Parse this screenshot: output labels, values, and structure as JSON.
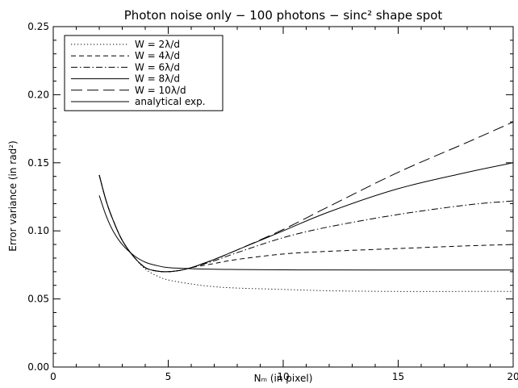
{
  "chart_data": {
    "type": "line",
    "title": "Photon noise only − 100 photons − sinc² shape spot",
    "xlabel": "Nₘ (in pixel)",
    "ylabel": "Error variance (in rad²)",
    "xlim": [
      0,
      20
    ],
    "ylim": [
      0,
      0.25
    ],
    "xticks": [
      0,
      5,
      10,
      15,
      20
    ],
    "xtick_labels": [
      "0",
      "5",
      "10",
      "15",
      "20"
    ],
    "yticks": [
      0,
      0.05,
      0.1,
      0.15,
      0.2,
      0.25
    ],
    "ytick_labels": [
      "0.00",
      "0.05",
      "0.10",
      "0.15",
      "0.20",
      "0.25"
    ],
    "grid": false,
    "legend_position": "top-left",
    "series": [
      {
        "name": "W =  2λ/d",
        "dash": "dotted",
        "x": [
          2,
          2.3,
          2.6,
          3,
          3.5,
          4,
          4.5,
          5,
          6,
          7,
          8,
          10,
          12,
          15,
          18,
          20
        ],
        "y": [
          0.141,
          0.122,
          0.108,
          0.093,
          0.081,
          0.072,
          0.067,
          0.064,
          0.061,
          0.059,
          0.058,
          0.057,
          0.056,
          0.0555,
          0.0555,
          0.0555
        ]
      },
      {
        "name": "W =  4λ/d",
        "dash": "dashed",
        "x": [
          2,
          2.3,
          2.6,
          3,
          3.5,
          4,
          4.5,
          5,
          5.5,
          6,
          7,
          8,
          10,
          12,
          15,
          18,
          20
        ],
        "y": [
          0.141,
          0.122,
          0.108,
          0.093,
          0.081,
          0.073,
          0.0705,
          0.07,
          0.071,
          0.073,
          0.076,
          0.079,
          0.083,
          0.085,
          0.087,
          0.089,
          0.09
        ]
      },
      {
        "name": "W =  6λ/d",
        "dash": "dashdot",
        "x": [
          2,
          2.3,
          2.6,
          3,
          3.5,
          4,
          4.5,
          5,
          5.5,
          6,
          7,
          8,
          10,
          12,
          15,
          18,
          20
        ],
        "y": [
          0.141,
          0.122,
          0.108,
          0.093,
          0.081,
          0.073,
          0.0705,
          0.07,
          0.071,
          0.073,
          0.078,
          0.084,
          0.095,
          0.103,
          0.112,
          0.119,
          0.122
        ]
      },
      {
        "name": "W =  8λ/d",
        "dash": "solid",
        "x": [
          2,
          2.3,
          2.6,
          3,
          3.5,
          4,
          4.5,
          5,
          5.5,
          6,
          7,
          8,
          10,
          12,
          15,
          18,
          20
        ],
        "y": [
          0.141,
          0.122,
          0.108,
          0.093,
          0.081,
          0.073,
          0.0705,
          0.07,
          0.071,
          0.073,
          0.079,
          0.086,
          0.1,
          0.114,
          0.131,
          0.143,
          0.15
        ]
      },
      {
        "name": "W = 10λ/d",
        "dash": "longdash",
        "x": [
          2,
          2.3,
          2.6,
          3,
          3.5,
          4,
          4.5,
          5,
          5.5,
          6,
          7,
          8,
          10,
          12,
          15,
          18,
          20
        ],
        "y": [
          0.141,
          0.122,
          0.108,
          0.093,
          0.081,
          0.073,
          0.0705,
          0.07,
          0.071,
          0.073,
          0.079,
          0.086,
          0.101,
          0.118,
          0.143,
          0.165,
          0.18
        ]
      },
      {
        "name": "analytical exp.",
        "dash": "solid",
        "x": [
          2,
          2.3,
          2.6,
          3,
          3.5,
          4,
          4.5,
          5,
          6,
          7,
          8,
          10,
          12,
          15,
          18,
          20
        ],
        "y": [
          0.126,
          0.111,
          0.1,
          0.09,
          0.082,
          0.077,
          0.0745,
          0.073,
          0.0722,
          0.0718,
          0.0716,
          0.0714,
          0.0713,
          0.0712,
          0.0712,
          0.0712
        ]
      }
    ]
  }
}
